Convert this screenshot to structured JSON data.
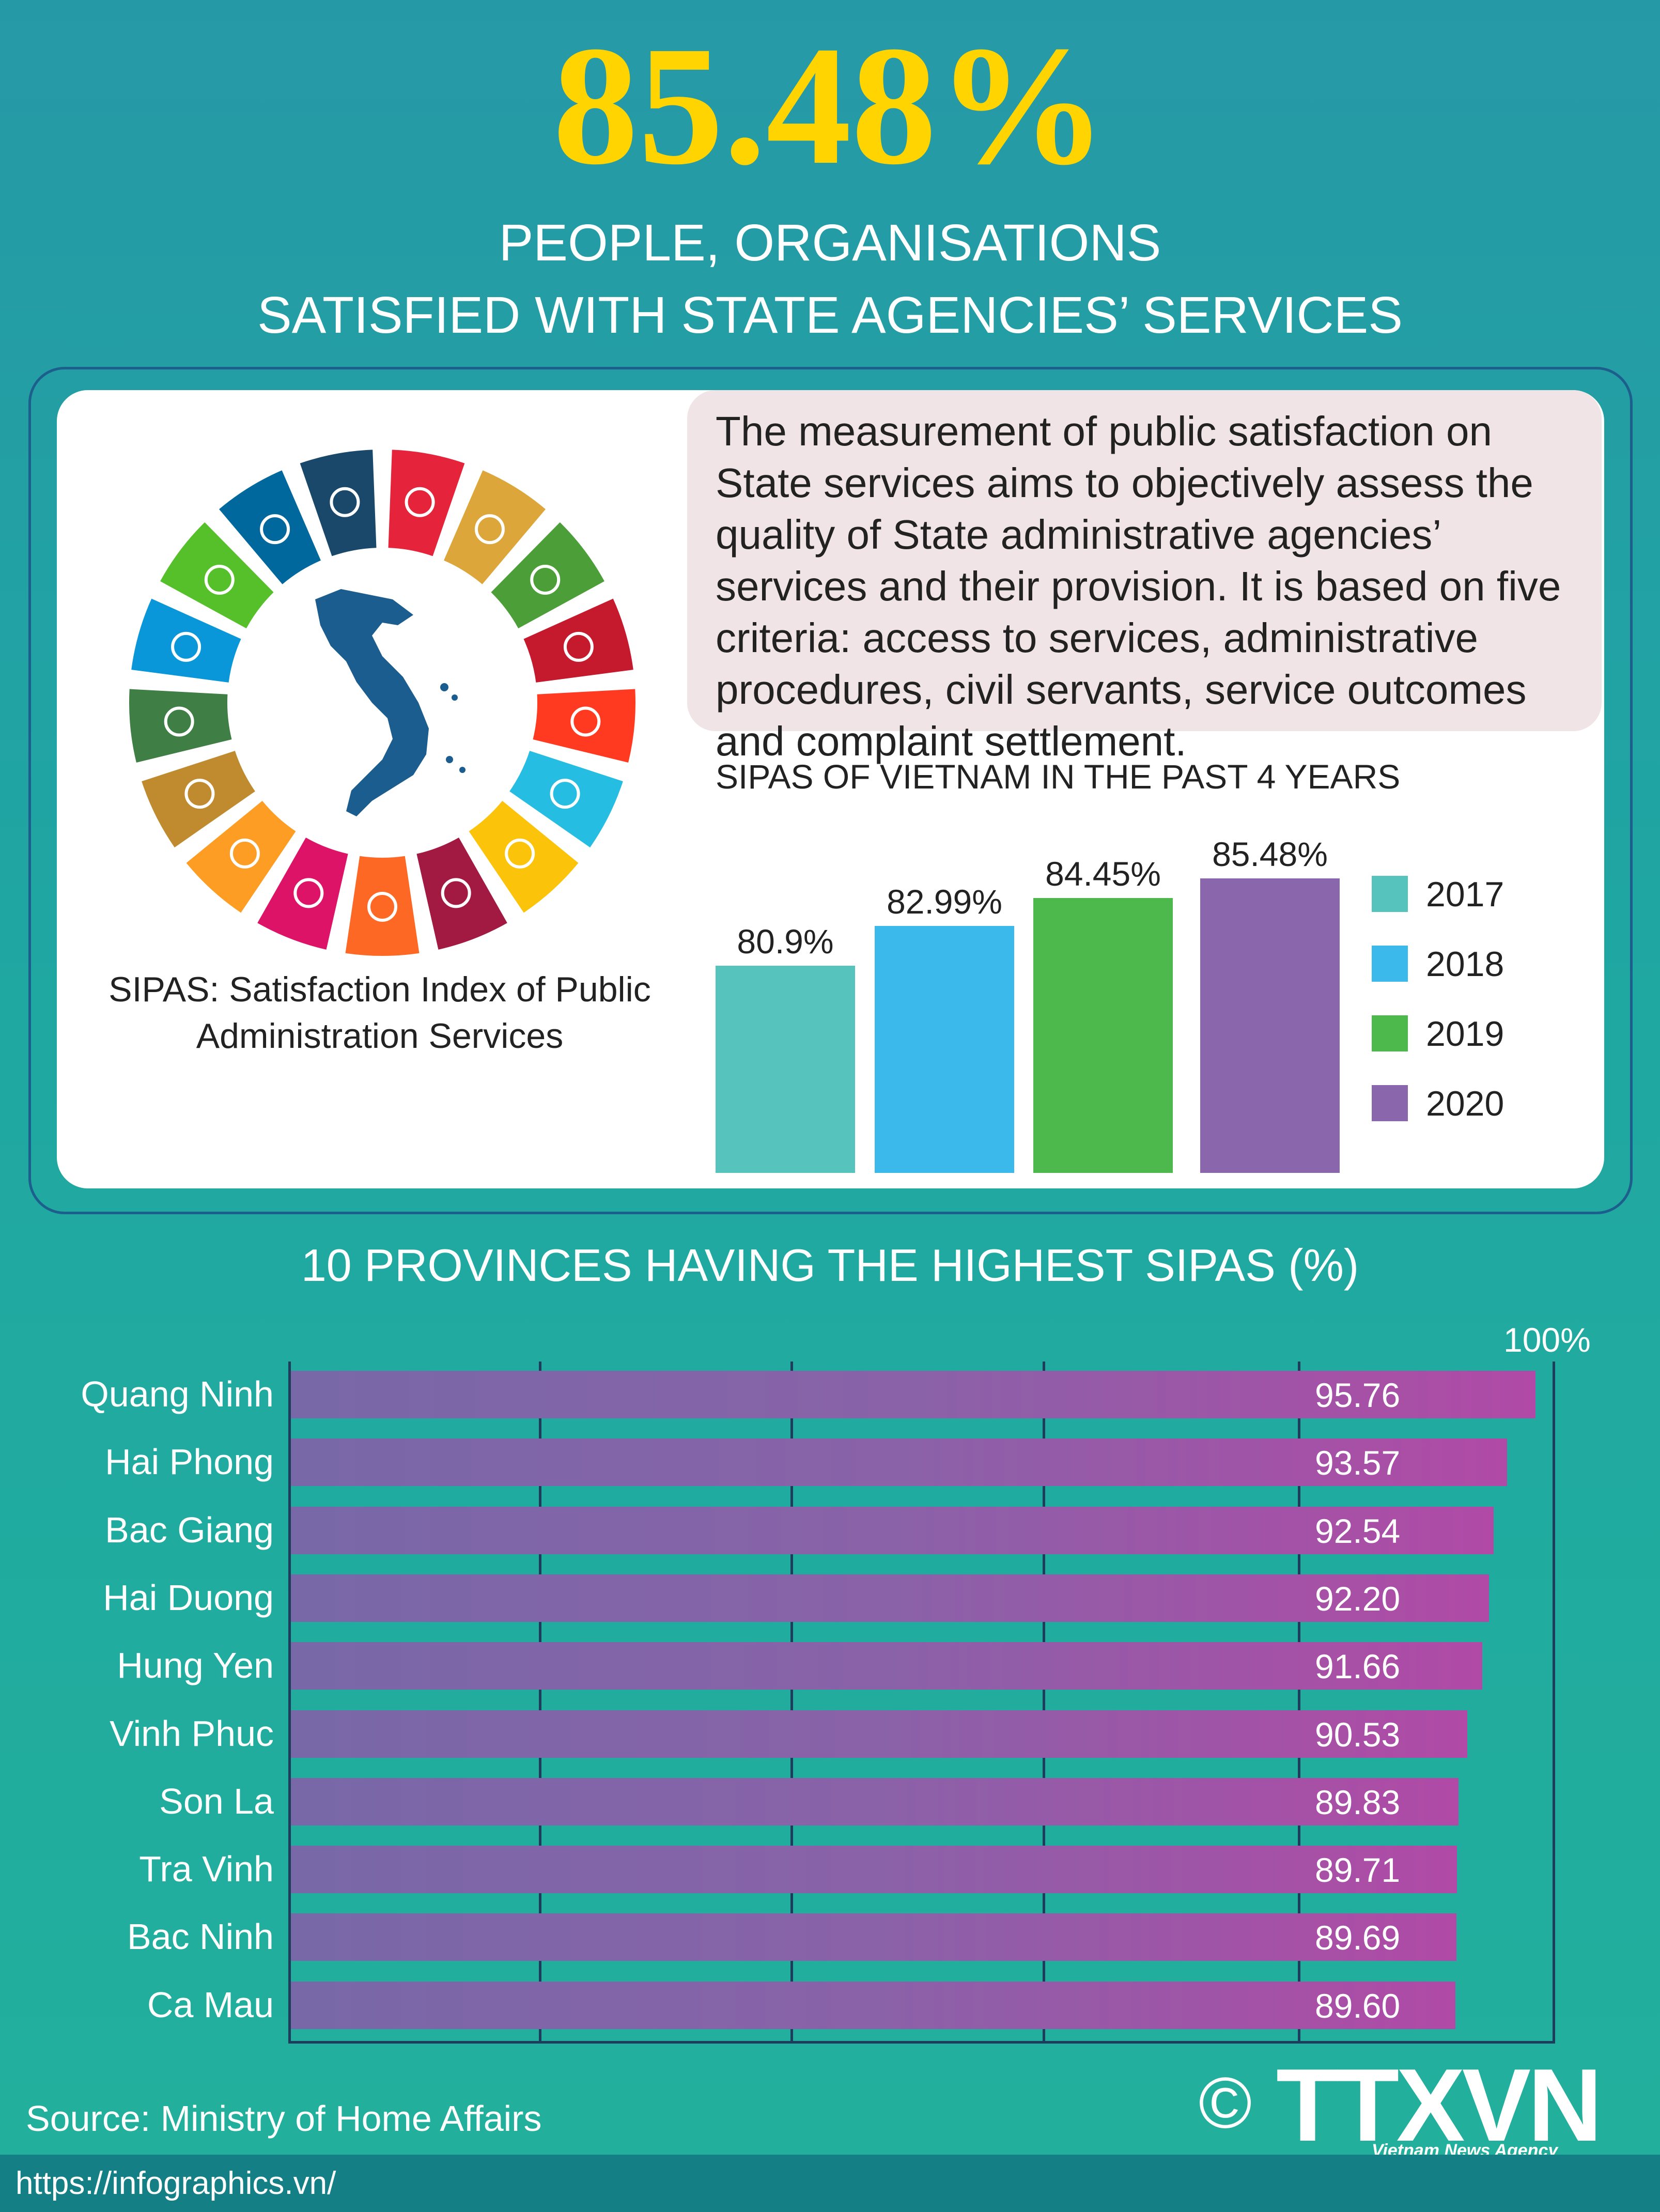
{
  "header": {
    "headline": "85.48%",
    "subtitle_line1": "PEOPLE, ORGANISATIONS",
    "subtitle_line2": "SATISFIED WITH STATE AGENCIES’ SERVICES"
  },
  "panel": {
    "description": "The measurement of public satisfaction on State services aims to objectively assess the quality of State administrative agencies’ services and their provision. It is based on five criteria: access to services, administrative procedures, civil servants, service outcomes and complaint settlement.",
    "sipas_caption_line1": "SIPAS:  Satisfaction Index of Public",
    "sipas_caption_line2": "Administration Services",
    "sdg_icons": [
      "people-circle-icon",
      "family-icon",
      "bowl-icon",
      "heartbeat-icon",
      "book-icon",
      "gender-icon",
      "water-drop-icon",
      "sun-icon",
      "industry-icon",
      "equality-icon",
      "buildings-icon",
      "infinity-icon",
      "eye-globe-icon",
      "fish-icon",
      "tree-icon",
      "dove-icon",
      "flower-icon"
    ],
    "sdg_colors": [
      "#e5243b",
      "#dda63a",
      "#4c9f38",
      "#c5192d",
      "#ff3a21",
      "#26bde2",
      "#fcc30b",
      "#a21942",
      "#fd6925",
      "#dd1367",
      "#fd9d24",
      "#bf8b2e",
      "#3f7e44",
      "#0a97d9",
      "#56c02b",
      "#00689d",
      "#19486a"
    ]
  },
  "chart_data": [
    {
      "type": "bar",
      "title": "SIPAS OF VIETNAM IN THE PAST 4 YEARS",
      "categories": [
        "2017",
        "2018",
        "2019",
        "2020"
      ],
      "values": [
        80.9,
        82.99,
        84.45,
        85.48
      ],
      "value_labels": [
        "80.9%",
        "82.99%",
        "84.45%",
        "85.48%"
      ],
      "colors": [
        "#56c3bd",
        "#3ab9ea",
        "#4db84b",
        "#8a66ad"
      ],
      "legend_position": "right"
    },
    {
      "type": "bar",
      "orientation": "horizontal",
      "title": "10 PROVINCES HAVING THE HIGHEST SIPAS (%)",
      "categories": [
        "Quang Ninh",
        "Hai Phong",
        "Bac Giang",
        "Hai Duong",
        "Hung Yen",
        "Vinh Phuc",
        "Son La",
        "Tra Vinh",
        "Bac Ninh",
        "Ca Mau"
      ],
      "values": [
        95.76,
        93.57,
        92.54,
        92.2,
        91.66,
        90.53,
        89.83,
        89.71,
        89.69,
        89.6
      ],
      "value_labels": [
        "95.76",
        "93.57",
        "92.54",
        "92.20",
        "91.66",
        "90.53",
        "89.83",
        "89.71",
        "89.69",
        "89.60"
      ],
      "xlim": [
        0,
        100
      ],
      "max_label": "100%",
      "grid": true
    }
  ],
  "footer": {
    "source": "Source: Ministry of Home Affairs",
    "url": "https://infographics.vn/",
    "copyright_symbol": "©",
    "logo_text": "TTXVN",
    "logo_subtitle": "Vietnam News Agency"
  }
}
